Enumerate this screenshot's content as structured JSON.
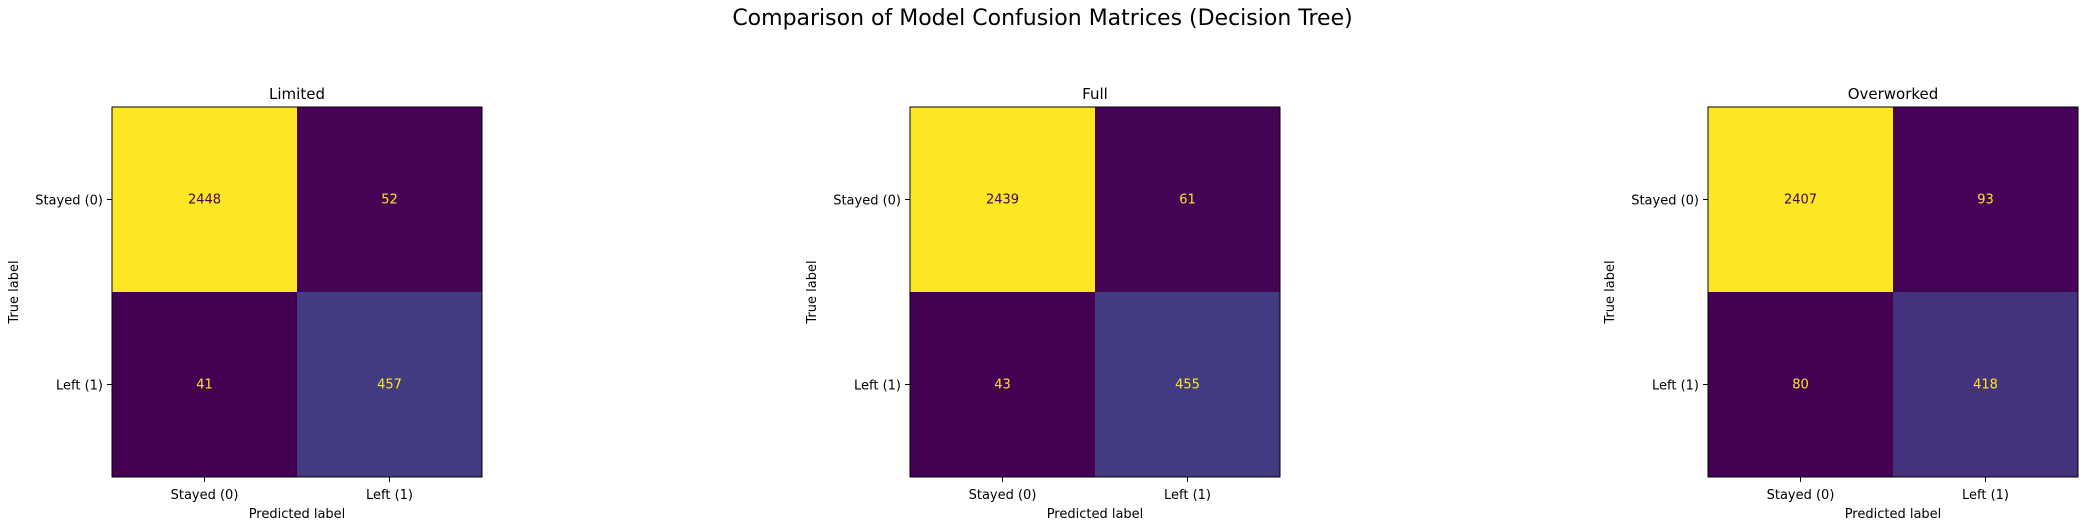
{
  "suptitle": "Comparison of Model Confusion Matrices (Decision Tree)",
  "colors": {
    "high": "#fde725",
    "mid": "#433e85",
    "low": "#440154",
    "text_on_dark": "#fde725",
    "text_on_light": "#440154"
  },
  "chart_data": [
    {
      "type": "heatmap",
      "title": "Limited",
      "xlabel": "Predicted label",
      "ylabel": "True label",
      "x_categories": [
        "Stayed (0)",
        "Left (1)"
      ],
      "y_categories": [
        "Stayed (0)",
        "Left (1)"
      ],
      "values": [
        [
          2448,
          52
        ],
        [
          41,
          457
        ]
      ],
      "colormap": "viridis",
      "colorbar": false
    },
    {
      "type": "heatmap",
      "title": "Full",
      "xlabel": "Predicted label",
      "ylabel": "True label",
      "x_categories": [
        "Stayed (0)",
        "Left (1)"
      ],
      "y_categories": [
        "Stayed (0)",
        "Left (1)"
      ],
      "values": [
        [
          2439,
          61
        ],
        [
          43,
          455
        ]
      ],
      "colormap": "viridis",
      "colorbar": false
    },
    {
      "type": "heatmap",
      "title": "Overworked",
      "xlabel": "Predicted label",
      "ylabel": "True label",
      "x_categories": [
        "Stayed (0)",
        "Left (1)"
      ],
      "y_categories": [
        "Stayed (0)",
        "Left (1)"
      ],
      "values": [
        [
          2407,
          93
        ],
        [
          80,
          418
        ]
      ],
      "colormap": "viridis",
      "colorbar": false
    }
  ]
}
